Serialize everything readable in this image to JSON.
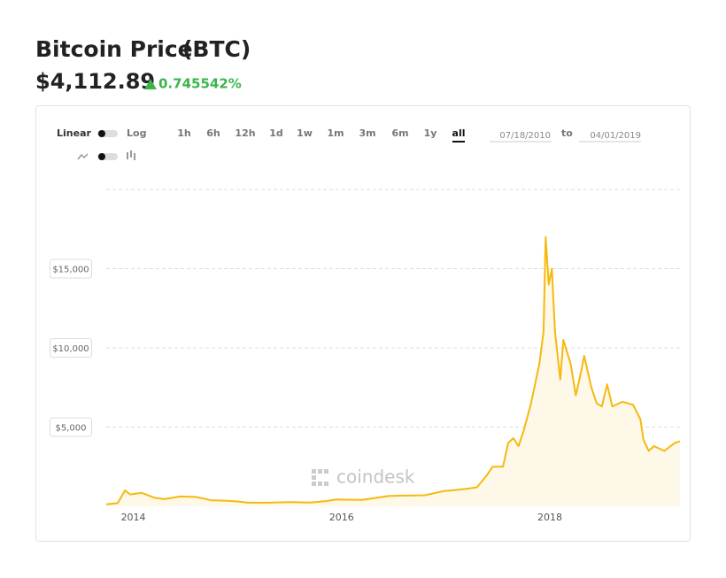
{
  "header": {
    "title": "Bitcoin Price",
    "symbol": "(BTC)",
    "price": "$4,112.89",
    "change": "0.745542%"
  },
  "controls": {
    "scale": [
      "Linear",
      "Log"
    ],
    "ranges": [
      "1h",
      "6h",
      "12h",
      "1d",
      "1w",
      "1m",
      "3m",
      "6m",
      "1y",
      "all"
    ],
    "date_from": "07/18/2010",
    "to": "to",
    "date_to": "04/01/2019"
  },
  "chart_data": {
    "type": "line",
    "watermark": "coindesk",
    "color": "#f5b90f",
    "area_color": "#fdf8e8",
    "grid": true,
    "x": [
      2013.74,
      2013.85,
      2013.92,
      2013.97,
      2014.08,
      2014.2,
      2014.3,
      2014.45,
      2014.6,
      2014.75,
      2014.9,
      2015.0,
      2015.1,
      2015.3,
      2015.5,
      2015.7,
      2015.85,
      2015.95,
      2016.2,
      2016.45,
      2016.55,
      2016.8,
      2016.98,
      2017.05,
      2017.2,
      2017.3,
      2017.4,
      2017.45,
      2017.55,
      2017.6,
      2017.65,
      2017.7,
      2017.75,
      2017.82,
      2017.9,
      2017.94,
      2017.96,
      2017.99,
      2018.02,
      2018.05,
      2018.1,
      2018.13,
      2018.2,
      2018.25,
      2018.3,
      2018.33,
      2018.4,
      2018.45,
      2018.5,
      2018.55,
      2018.6,
      2018.7,
      2018.8,
      2018.87,
      2018.9,
      2018.95,
      2019.0,
      2019.1,
      2019.2,
      2019.25
    ],
    "values": [
      125,
      200,
      1000,
      750,
      850,
      550,
      450,
      620,
      590,
      380,
      350,
      310,
      230,
      230,
      270,
      235,
      330,
      430,
      410,
      650,
      670,
      700,
      960,
      1000,
      1100,
      1200,
      2000,
      2500,
      2500,
      4000,
      4300,
      3800,
      4800,
      6500,
      9000,
      11000,
      17000,
      14000,
      15000,
      11000,
      8000,
      10500,
      9000,
      7000,
      8500,
      9500,
      7500,
      6500,
      6300,
      7700,
      6300,
      6600,
      6400,
      5500,
      4200,
      3500,
      3800,
      3500,
      4000,
      4100
    ],
    "xlim": [
      2013.74,
      2019.25
    ],
    "xticks": [
      2014,
      2016,
      2018
    ],
    "ylim": [
      0,
      20000
    ],
    "yticks": [
      {
        "value": 5000,
        "label": "$5,000"
      },
      {
        "value": 10000,
        "label": "$10,000"
      },
      {
        "value": 15000,
        "label": "$15,000"
      }
    ]
  }
}
